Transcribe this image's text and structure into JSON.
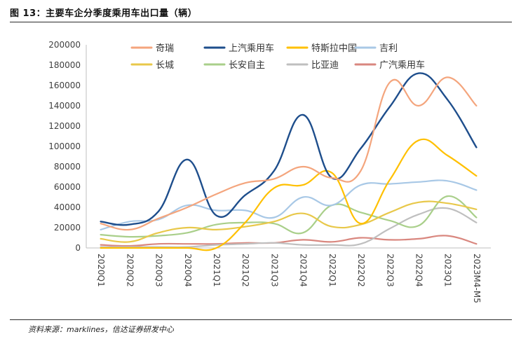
{
  "header": {
    "title": "图 13：主要车企分季度乘用车出口量（辆）"
  },
  "footer": {
    "source": "资料来源：marklines，信达证券研发中心"
  },
  "chart_data": {
    "type": "line",
    "categories": [
      "2020Q1",
      "2020Q2",
      "2020Q3",
      "2020Q4",
      "2021Q1",
      "2021Q2",
      "2021Q3",
      "2021Q4",
      "2022Q1",
      "2022Q2",
      "2022Q3",
      "2022Q4",
      "2023Q1",
      "2023M4-M5"
    ],
    "ylim": [
      0,
      200000
    ],
    "yticks": [
      0,
      20000,
      40000,
      60000,
      80000,
      100000,
      120000,
      140000,
      160000,
      180000,
      200000
    ],
    "grid": false,
    "legend_position": "top",
    "series": [
      {
        "name": "奇瑞",
        "color": "#F4A57D",
        "values": [
          24000,
          18000,
          29000,
          40000,
          53000,
          64000,
          68000,
          80000,
          69000,
          76000,
          163000,
          140000,
          168000,
          140000
        ]
      },
      {
        "name": "上汽乘用车",
        "color": "#1E4E8C",
        "values": [
          26000,
          23000,
          36000,
          87000,
          32000,
          52000,
          76000,
          131000,
          69000,
          98000,
          139000,
          172000,
          146000,
          99000
        ]
      },
      {
        "name": "特斯拉中国",
        "color": "#FFC000",
        "values": [
          0,
          0,
          0,
          0,
          0,
          25000,
          59000,
          62000,
          74000,
          24000,
          67000,
          106000,
          91000,
          71000
        ]
      },
      {
        "name": "吉利",
        "color": "#A8C8E6",
        "values": [
          18000,
          26000,
          28000,
          42000,
          37000,
          37000,
          30000,
          50000,
          42000,
          62000,
          63000,
          65000,
          66000,
          57000
        ]
      },
      {
        "name": "长城",
        "color": "#E8C84A",
        "values": [
          9000,
          6000,
          15000,
          20000,
          18000,
          21000,
          26000,
          34000,
          21000,
          23000,
          35000,
          45000,
          44000,
          38000
        ]
      },
      {
        "name": "长安自主",
        "color": "#A9CF8A",
        "values": [
          13000,
          11000,
          12000,
          15000,
          23000,
          25000,
          24000,
          15000,
          42000,
          35000,
          27000,
          22000,
          51000,
          30000
        ]
      },
      {
        "name": "比亚迪",
        "color": "#BFBFBF",
        "values": [
          1000,
          1000,
          1000,
          1000,
          3000,
          4000,
          5000,
          3000,
          3000,
          4000,
          19000,
          33000,
          39000,
          25000
        ]
      },
      {
        "name": "广汽乘用车",
        "color": "#D9877F",
        "values": [
          3000,
          2000,
          4000,
          4000,
          4000,
          5000,
          5000,
          8000,
          6000,
          10000,
          8000,
          9000,
          12000,
          4000
        ]
      }
    ]
  }
}
